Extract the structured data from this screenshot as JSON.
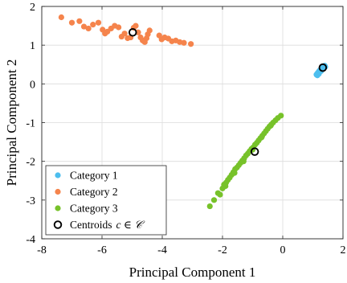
{
  "chart_data": {
    "type": "scatter",
    "xlabel": "Principal Component 1",
    "ylabel": "Principal Component 2",
    "xlim": [
      -8,
      2
    ],
    "ylim": [
      -4,
      2
    ],
    "xticks": [
      -8,
      -6,
      -4,
      -2,
      0,
      2
    ],
    "yticks": [
      -4,
      -3,
      -2,
      -1,
      0,
      1,
      2
    ],
    "xtick_labels": [
      "-8",
      "-6",
      "-4",
      "-2",
      "0",
      "2"
    ],
    "ytick_labels": [
      "-4",
      "-3",
      "-2",
      "-1",
      "0",
      "1",
      "2"
    ],
    "grid": true,
    "legend_position": "bottom-left",
    "series": [
      {
        "name": "Category 1",
        "color": "#4DBEEE",
        "marker": "filled-circle",
        "points": [
          [
            1.12,
            0.24
          ],
          [
            1.16,
            0.28
          ],
          [
            1.19,
            0.31
          ],
          [
            1.22,
            0.34
          ],
          [
            1.25,
            0.36
          ],
          [
            1.28,
            0.39
          ],
          [
            1.3,
            0.41
          ],
          [
            1.33,
            0.43
          ],
          [
            1.36,
            0.45
          ],
          [
            1.39,
            0.47
          ],
          [
            1.41,
            0.44
          ],
          [
            1.2,
            0.26
          ],
          [
            1.27,
            0.33
          ],
          [
            1.34,
            0.4
          ],
          [
            1.15,
            0.22
          ]
        ]
      },
      {
        "name": "Category 2",
        "color": "#F5844C",
        "marker": "filled-circle",
        "points": [
          [
            -7.35,
            1.72
          ],
          [
            -7.0,
            1.58
          ],
          [
            -6.75,
            1.62
          ],
          [
            -6.6,
            1.48
          ],
          [
            -6.45,
            1.43
          ],
          [
            -6.3,
            1.53
          ],
          [
            -6.12,
            1.58
          ],
          [
            -5.98,
            1.4
          ],
          [
            -5.9,
            1.3
          ],
          [
            -5.82,
            1.35
          ],
          [
            -5.7,
            1.43
          ],
          [
            -5.58,
            1.5
          ],
          [
            -5.45,
            1.46
          ],
          [
            -5.35,
            1.22
          ],
          [
            -5.25,
            1.3
          ],
          [
            -5.15,
            1.18
          ],
          [
            -5.05,
            1.2
          ],
          [
            -4.95,
            1.45
          ],
          [
            -4.88,
            1.5
          ],
          [
            -4.8,
            1.33
          ],
          [
            -4.72,
            1.2
          ],
          [
            -4.65,
            1.12
          ],
          [
            -4.58,
            1.08
          ],
          [
            -4.52,
            1.18
          ],
          [
            -4.48,
            1.28
          ],
          [
            -4.42,
            1.38
          ],
          [
            -4.1,
            1.25
          ],
          [
            -4.02,
            1.15
          ],
          [
            -3.92,
            1.2
          ],
          [
            -3.8,
            1.17
          ],
          [
            -3.68,
            1.1
          ],
          [
            -3.55,
            1.12
          ],
          [
            -3.42,
            1.08
          ],
          [
            -3.28,
            1.06
          ],
          [
            -3.05,
            1.03
          ]
        ]
      },
      {
        "name": "Category 3",
        "color": "#77C22A",
        "marker": "filled-circle",
        "points": [
          [
            -2.42,
            -3.16
          ],
          [
            -2.28,
            -3.0
          ],
          [
            -2.15,
            -2.82
          ],
          [
            -2.08,
            -2.86
          ],
          [
            -2.0,
            -2.7
          ],
          [
            -1.95,
            -2.6
          ],
          [
            -1.88,
            -2.55
          ],
          [
            -1.82,
            -2.48
          ],
          [
            -1.76,
            -2.42
          ],
          [
            -1.7,
            -2.35
          ],
          [
            -1.64,
            -2.28
          ],
          [
            -1.58,
            -2.2
          ],
          [
            -1.52,
            -2.16
          ],
          [
            -1.46,
            -2.1
          ],
          [
            -1.4,
            -2.04
          ],
          [
            -1.34,
            -1.98
          ],
          [
            -1.28,
            -1.92
          ],
          [
            -1.22,
            -1.85
          ],
          [
            -1.16,
            -1.8
          ],
          [
            -1.1,
            -1.74
          ],
          [
            -1.04,
            -1.68
          ],
          [
            -0.98,
            -1.64
          ],
          [
            -0.92,
            -1.57
          ],
          [
            -0.86,
            -1.52
          ],
          [
            -0.8,
            -1.46
          ],
          [
            -0.74,
            -1.4
          ],
          [
            -0.68,
            -1.34
          ],
          [
            -0.62,
            -1.28
          ],
          [
            -0.56,
            -1.22
          ],
          [
            -0.5,
            -1.16
          ],
          [
            -0.44,
            -1.1
          ],
          [
            -0.38,
            -1.05
          ],
          [
            -0.32,
            -1.0
          ],
          [
            -0.24,
            -0.94
          ],
          [
            -0.16,
            -0.88
          ],
          [
            -0.06,
            -0.82
          ],
          [
            -1.9,
            -2.64
          ],
          [
            -1.6,
            -2.3
          ],
          [
            -1.3,
            -2.0
          ],
          [
            -1.0,
            -1.7
          ],
          [
            -0.7,
            -1.38
          ],
          [
            -0.4,
            -1.08
          ]
        ]
      },
      {
        "name": "Centroids",
        "name_math": "c ∈ 𝒞",
        "color": "#000000",
        "marker": "open-circle",
        "points": [
          [
            1.33,
            0.42
          ],
          [
            -4.98,
            1.33
          ],
          [
            -0.93,
            -1.75
          ]
        ]
      }
    ]
  }
}
